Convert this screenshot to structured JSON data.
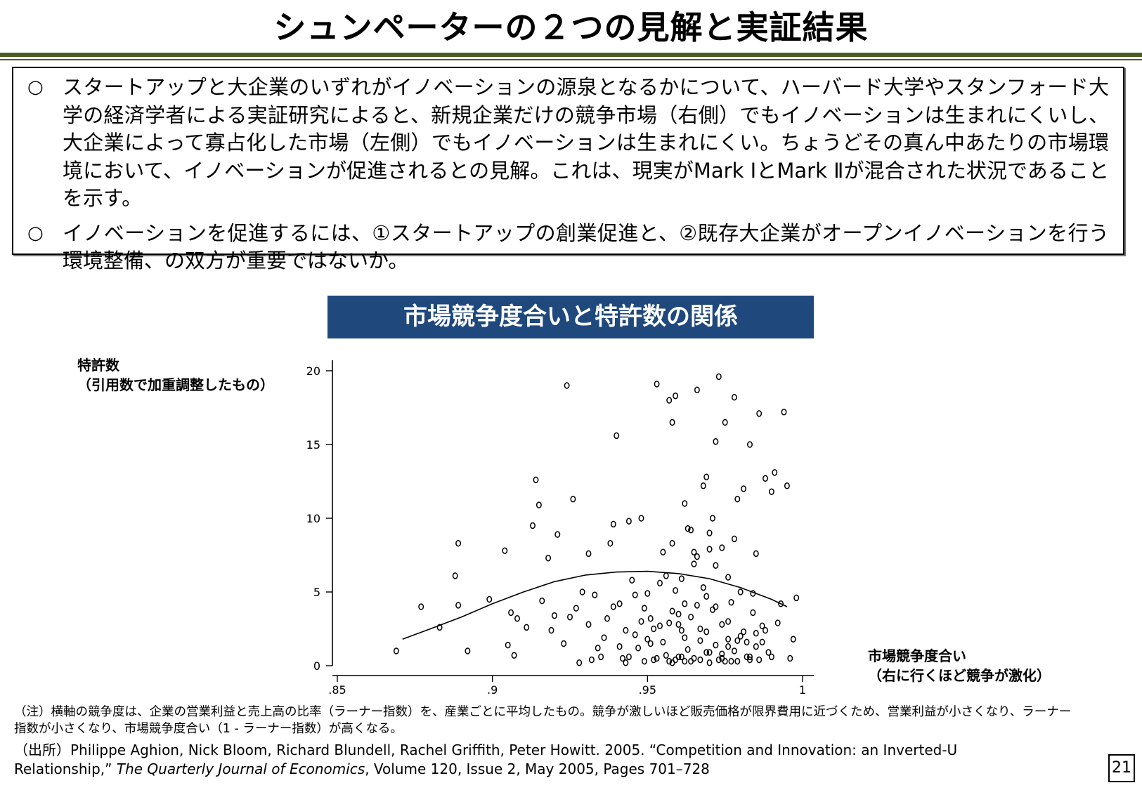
{
  "header": {
    "title": "シュンペーターの２つの見解と実証結果"
  },
  "summary": {
    "bullet_mark": "○",
    "bullets": [
      "スタートアップと大企業のいずれがイノベーションの源泉となるかについて、ハーバード大学やスタンフォード大学の経済学者による実証研究によると、新規企業だけの競争市場（右側）でもイノベーションは生まれにくいし、大企業によって寡占化した市場（左側）でもイノベーションは生まれにくい。ちょうどその真ん中あたりの市場環境において、イノベーションが促進されるとの見解。これは、現実がMark ⅠとMark Ⅱが混合された状況であることを示す。",
      "イノベーションを促進するには、①スタートアップの創業促進と、②既存大企業がオープンイノベーションを行う環境整備、の双方が重要ではないか。"
    ]
  },
  "chart_data": {
    "type": "scatter",
    "title": "市場競争度合いと特許数の関係",
    "ylabel_line1": "特許数",
    "ylabel_line2": "（引用数で加重調整したもの）",
    "xlabel_line1": "市場競争度合い",
    "xlabel_line2": "（右に行くほど競争が激化）",
    "xlim": [
      0.85,
      1.0
    ],
    "ylim": [
      0,
      20
    ],
    "x_ticks": [
      ".85",
      ".9",
      ".95",
      "1"
    ],
    "y_ticks": [
      "0",
      "5",
      "10",
      "15",
      "20"
    ],
    "grid": false,
    "legend": "none",
    "fit_curve": {
      "x": [
        0.871,
        0.88,
        0.89,
        0.9,
        0.91,
        0.92,
        0.93,
        0.94,
        0.95,
        0.96,
        0.97,
        0.98,
        0.99,
        0.995
      ],
      "y": [
        1.8,
        2.5,
        3.3,
        4.2,
        5.0,
        5.7,
        6.15,
        6.35,
        6.4,
        6.25,
        5.9,
        5.3,
        4.5,
        4.0
      ]
    },
    "points": [
      [
        0.869,
        1.0
      ],
      [
        0.877,
        4.0
      ],
      [
        0.883,
        2.6
      ],
      [
        0.888,
        6.1
      ],
      [
        0.889,
        4.1
      ],
      [
        0.889,
        8.3
      ],
      [
        0.892,
        1.0
      ],
      [
        0.899,
        4.5
      ],
      [
        0.904,
        7.8
      ],
      [
        0.905,
        1.4
      ],
      [
        0.906,
        3.6
      ],
      [
        0.907,
        0.7
      ],
      [
        0.908,
        3.2
      ],
      [
        0.911,
        2.6
      ],
      [
        0.913,
        9.5
      ],
      [
        0.914,
        12.6
      ],
      [
        0.915,
        10.9
      ],
      [
        0.916,
        4.4
      ],
      [
        0.918,
        7.3
      ],
      [
        0.919,
        2.4
      ],
      [
        0.92,
        3.4
      ],
      [
        0.921,
        8.9
      ],
      [
        0.923,
        1.5
      ],
      [
        0.924,
        19.0
      ],
      [
        0.925,
        3.3
      ],
      [
        0.926,
        11.3
      ],
      [
        0.927,
        3.9
      ],
      [
        0.928,
        0.2
      ],
      [
        0.929,
        5.0
      ],
      [
        0.931,
        7.6
      ],
      [
        0.931,
        2.8
      ],
      [
        0.932,
        0.4
      ],
      [
        0.933,
        4.8
      ],
      [
        0.934,
        1.2
      ],
      [
        0.935,
        0.6
      ],
      [
        0.936,
        1.9
      ],
      [
        0.937,
        3.2
      ],
      [
        0.938,
        8.3
      ],
      [
        0.939,
        9.6
      ],
      [
        0.939,
        4.0
      ],
      [
        0.94,
        15.6
      ],
      [
        0.941,
        1.3
      ],
      [
        0.942,
        0.5
      ],
      [
        0.943,
        0.2
      ],
      [
        0.944,
        9.8
      ],
      [
        0.945,
        5.8
      ],
      [
        0.946,
        2.1
      ],
      [
        0.947,
        1.2
      ],
      [
        0.948,
        10.0
      ],
      [
        0.949,
        0.3
      ],
      [
        0.95,
        4.9
      ],
      [
        0.951,
        3.2
      ],
      [
        0.952,
        0.4
      ],
      [
        0.953,
        19.1
      ],
      [
        0.954,
        2.7
      ],
      [
        0.955,
        7.7
      ],
      [
        0.956,
        0.7
      ],
      [
        0.957,
        18.0
      ],
      [
        0.958,
        16.5
      ],
      [
        0.959,
        18.3
      ],
      [
        0.96,
        3.5
      ],
      [
        0.961,
        0.6
      ],
      [
        0.962,
        1.9
      ],
      [
        0.963,
        9.3
      ],
      [
        0.964,
        0.3
      ],
      [
        0.965,
        7.7
      ],
      [
        0.966,
        18.7
      ],
      [
        0.967,
        0.4
      ],
      [
        0.968,
        5.3
      ],
      [
        0.969,
        2.3
      ],
      [
        0.97,
        0.2
      ],
      [
        0.971,
        10.0
      ],
      [
        0.972,
        6.8
      ],
      [
        0.973,
        19.6
      ],
      [
        0.974,
        0.5
      ],
      [
        0.975,
        16.5
      ],
      [
        0.976,
        1.3
      ],
      [
        0.977,
        0.3
      ],
      [
        0.978,
        18.2
      ],
      [
        0.979,
        11.3
      ],
      [
        0.98,
        2.0
      ],
      [
        0.981,
        12.0
      ],
      [
        0.982,
        0.6
      ],
      [
        0.983,
        15.0
      ],
      [
        0.984,
        4.9
      ],
      [
        0.985,
        7.6
      ],
      [
        0.986,
        17.1
      ],
      [
        0.987,
        2.7
      ],
      [
        0.988,
        12.7
      ],
      [
        0.989,
        0.9
      ],
      [
        0.99,
        11.8
      ],
      [
        0.991,
        13.1
      ],
      [
        0.992,
        2.9
      ],
      [
        0.993,
        4.2
      ],
      [
        0.994,
        17.2
      ],
      [
        0.995,
        12.2
      ],
      [
        0.996,
        0.5
      ],
      [
        0.997,
        1.8
      ],
      [
        0.998,
        4.6
      ],
      [
        0.943,
        2.4
      ],
      [
        0.948,
        3.0
      ],
      [
        0.951,
        1.5
      ],
      [
        0.955,
        1.6
      ],
      [
        0.958,
        3.7
      ],
      [
        0.961,
        2.4
      ],
      [
        0.963,
        1.1
      ],
      [
        0.966,
        4.1
      ],
      [
        0.967,
        2.5
      ],
      [
        0.969,
        0.9
      ],
      [
        0.971,
        3.8
      ],
      [
        0.972,
        1.4
      ],
      [
        0.973,
        0.4
      ],
      [
        0.974,
        2.8
      ],
      [
        0.975,
        0.3
      ],
      [
        0.976,
        3.0
      ],
      [
        0.977,
        4.3
      ],
      [
        0.978,
        1.0
      ],
      [
        0.979,
        0.3
      ],
      [
        0.98,
        5.0
      ],
      [
        0.981,
        2.3
      ],
      [
        0.982,
        1.6
      ],
      [
        0.983,
        0.6
      ],
      [
        0.984,
        3.6
      ],
      [
        0.985,
        1.3
      ],
      [
        0.986,
        0.4
      ],
      [
        0.987,
        1.6
      ],
      [
        0.958,
        8.3
      ],
      [
        0.962,
        11.0
      ],
      [
        0.964,
        9.2
      ],
      [
        0.968,
        12.2
      ],
      [
        0.97,
        9.0
      ],
      [
        0.972,
        15.2
      ],
      [
        0.974,
        8.0
      ],
      [
        0.976,
        6.0
      ],
      [
        0.978,
        8.6
      ],
      [
        0.956,
        6.1
      ],
      [
        0.959,
        5.1
      ],
      [
        0.961,
        5.9
      ],
      [
        0.964,
        3.3
      ],
      [
        0.966,
        7.4
      ],
      [
        0.969,
        4.7
      ],
      [
        0.97,
        0.9
      ],
      [
        0.953,
        0.5
      ],
      [
        0.957,
        0.3
      ],
      [
        0.958,
        0.2
      ],
      [
        0.959,
        0.4
      ],
      [
        0.96,
        0.6
      ],
      [
        0.962,
        0.3
      ],
      [
        0.965,
        0.5
      ],
      [
        0.941,
        4.2
      ],
      [
        0.944,
        0.6
      ],
      [
        0.946,
        4.8
      ],
      [
        0.949,
        3.9
      ],
      [
        0.95,
        1.8
      ],
      [
        0.952,
        2.5
      ],
      [
        0.954,
        5.6
      ],
      [
        0.957,
        2.9
      ],
      [
        0.96,
        2.8
      ],
      [
        0.962,
        4.2
      ],
      [
        0.965,
        6.9
      ],
      [
        0.967,
        1.7
      ],
      [
        0.969,
        12.8
      ],
      [
        0.97,
        7.9
      ],
      [
        0.972,
        4.0
      ],
      [
        0.974,
        0.8
      ],
      [
        0.976,
        1.8
      ],
      [
        0.979,
        1.7
      ],
      [
        0.983,
        0.4
      ],
      [
        0.985,
        2.2
      ],
      [
        0.988,
        2.4
      ],
      [
        0.99,
        0.6
      ]
    ]
  },
  "footer": {
    "note": "（注）横軸の競争度は、企業の営業利益と売上高の比率（ラーナー指数）を、産業ごとに平均したもの。競争が激しいほど販売価格が限界費用に近づくため、営業利益が小さくなり、ラーナー指数が小さくなり、市場競争度合い（1 - ラーナー指数）が高くなる。",
    "source_prefix": "（出所）Philippe Aghion, Nick Bloom, Richard Blundell, Rachel Griffith, Peter Howitt. 2005. “Competition and Innovation: an Inverted-U Relationship,” ",
    "source_journal": "The Quarterly Journal of Economics",
    "source_suffix": ", Volume 120, Issue 2, May 2005, Pages 701–728",
    "page_number": "21"
  }
}
